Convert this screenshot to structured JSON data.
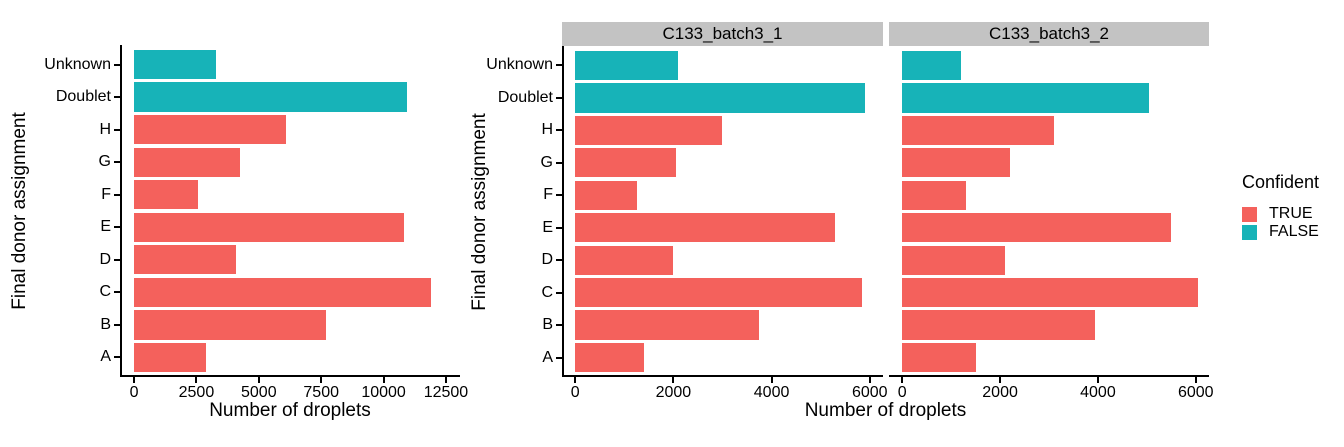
{
  "colors": {
    "confident_true": "#F4615C",
    "confident_false": "#17B3B8",
    "strip_bg": "#C3C3C3",
    "axis": "#000000"
  },
  "legend": {
    "title": "Confident",
    "items": [
      {
        "label": "TRUE",
        "color": "#F4615C"
      },
      {
        "label": "FALSE",
        "color": "#17B3B8"
      }
    ]
  },
  "chart_data": [
    {
      "type": "bar",
      "orientation": "horizontal",
      "facet": "",
      "xlabel": "Number of droplets",
      "ylabel": "Final donor assignment",
      "categories": [
        "Unknown",
        "Doublet",
        "H",
        "G",
        "F",
        "E",
        "D",
        "C",
        "B",
        "A"
      ],
      "values": [
        3300,
        10950,
        6100,
        4250,
        2550,
        10800,
        4100,
        11900,
        7700,
        2900
      ],
      "confident": [
        "FALSE",
        "FALSE",
        "TRUE",
        "TRUE",
        "TRUE",
        "TRUE",
        "TRUE",
        "TRUE",
        "TRUE",
        "TRUE"
      ],
      "xticks": [
        0,
        2500,
        5000,
        7500,
        10000,
        12500
      ],
      "xlim": [
        0,
        12500
      ],
      "grid": false,
      "legend_position": "none"
    },
    {
      "type": "bar",
      "orientation": "horizontal",
      "facet": "C133_batch3_1",
      "xlabel": "Number of droplets",
      "ylabel": "Final donor assignment",
      "categories": [
        "Unknown",
        "Doublet",
        "H",
        "G",
        "F",
        "E",
        "D",
        "C",
        "B",
        "A"
      ],
      "values": [
        2100,
        5900,
        3000,
        2050,
        1250,
        5300,
        2000,
        5850,
        3750,
        1400
      ],
      "confident": [
        "FALSE",
        "FALSE",
        "TRUE",
        "TRUE",
        "TRUE",
        "TRUE",
        "TRUE",
        "TRUE",
        "TRUE",
        "TRUE"
      ],
      "xticks": [
        0,
        2000,
        4000,
        6000
      ],
      "xlim": [
        0,
        6000
      ],
      "grid": false,
      "legend_position": "right"
    },
    {
      "type": "bar",
      "orientation": "horizontal",
      "facet": "C133_batch3_2",
      "xlabel": "Number of droplets",
      "ylabel": "Final donor assignment",
      "categories": [
        "Unknown",
        "Doublet",
        "H",
        "G",
        "F",
        "E",
        "D",
        "C",
        "B",
        "A"
      ],
      "values": [
        1200,
        5050,
        3100,
        2200,
        1300,
        5500,
        2100,
        6050,
        3950,
        1500
      ],
      "confident": [
        "FALSE",
        "FALSE",
        "TRUE",
        "TRUE",
        "TRUE",
        "TRUE",
        "TRUE",
        "TRUE",
        "TRUE",
        "TRUE"
      ],
      "xticks": [
        0,
        2000,
        4000,
        6000
      ],
      "xlim": [
        0,
        6000
      ],
      "grid": false,
      "legend_position": "right"
    }
  ]
}
